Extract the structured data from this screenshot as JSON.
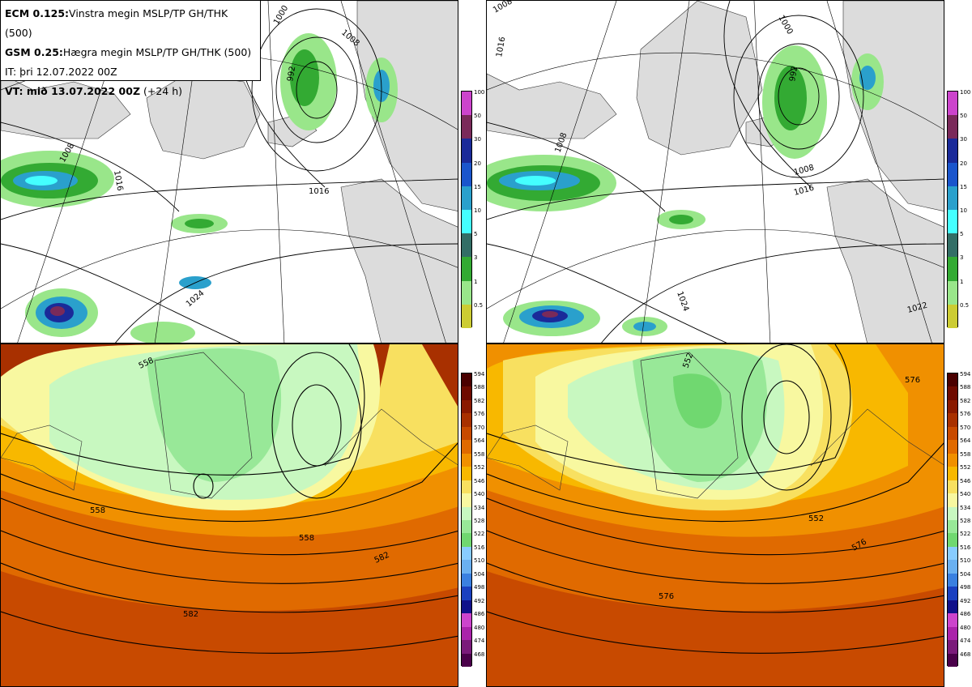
{
  "info": {
    "line1_bold": "ECM 0.125:",
    "line1_rest": "Vinstra megin MSLP/TP GH/THK (500)",
    "line2_bold": "GSM 0.25:",
    "line2_rest": "Hægra megin MSLP/TP GH/THK (500)",
    "line3": "IT: þri 12.07.2022 00Z",
    "line4_bold": "VT: mið 13.07.2022 00Z",
    "line4_rest": " (+24 h)"
  },
  "precip_scale": {
    "labels": [
      "100",
      "50",
      "30",
      "20",
      "15",
      "10",
      "5",
      "3",
      "1",
      "0.5"
    ],
    "colors": [
      "#cc44cc",
      "#7a2a5a",
      "#1a2a99",
      "#1a55cc",
      "#2aa0cc",
      "#44ffff",
      "#336e66",
      "#33aa33",
      "#99e68a",
      "#cccc33"
    ]
  },
  "height_scale": {
    "labels": [
      "594",
      "588",
      "582",
      "576",
      "570",
      "564",
      "558",
      "552",
      "546",
      "540",
      "534",
      "528",
      "522",
      "516",
      "510",
      "504",
      "498",
      "492",
      "486",
      "480",
      "474",
      "468"
    ],
    "colors": [
      "#4a0000",
      "#6e0a00",
      "#8a1a00",
      "#a83000",
      "#c84a00",
      "#e06a00",
      "#f09000",
      "#f8b800",
      "#f8e060",
      "#f8f8a0",
      "#c8f8c0",
      "#98e898",
      "#70d870",
      "#88ccff",
      "#6ab0f0",
      "#3a80e0",
      "#1a40c0",
      "#10108a",
      "#cc44cc",
      "#aa22aa",
      "#7a1a7a",
      "#4a004a"
    ]
  },
  "contour_labels": {
    "tl": [
      "1000",
      "1008",
      "992",
      "1016",
      "1016",
      "1008",
      "1024"
    ],
    "tr": [
      "1008",
      "1016",
      "1000",
      "992",
      "1008",
      "1016",
      "1024",
      "1022",
      "1008"
    ],
    "bl": [
      "558",
      "558",
      "558",
      "582",
      "582"
    ],
    "br": [
      "552",
      "552",
      "576",
      "576",
      "576"
    ]
  },
  "colors": {
    "land": "#dcdcdc",
    "sea": "#ffffff",
    "border": "#000000"
  }
}
